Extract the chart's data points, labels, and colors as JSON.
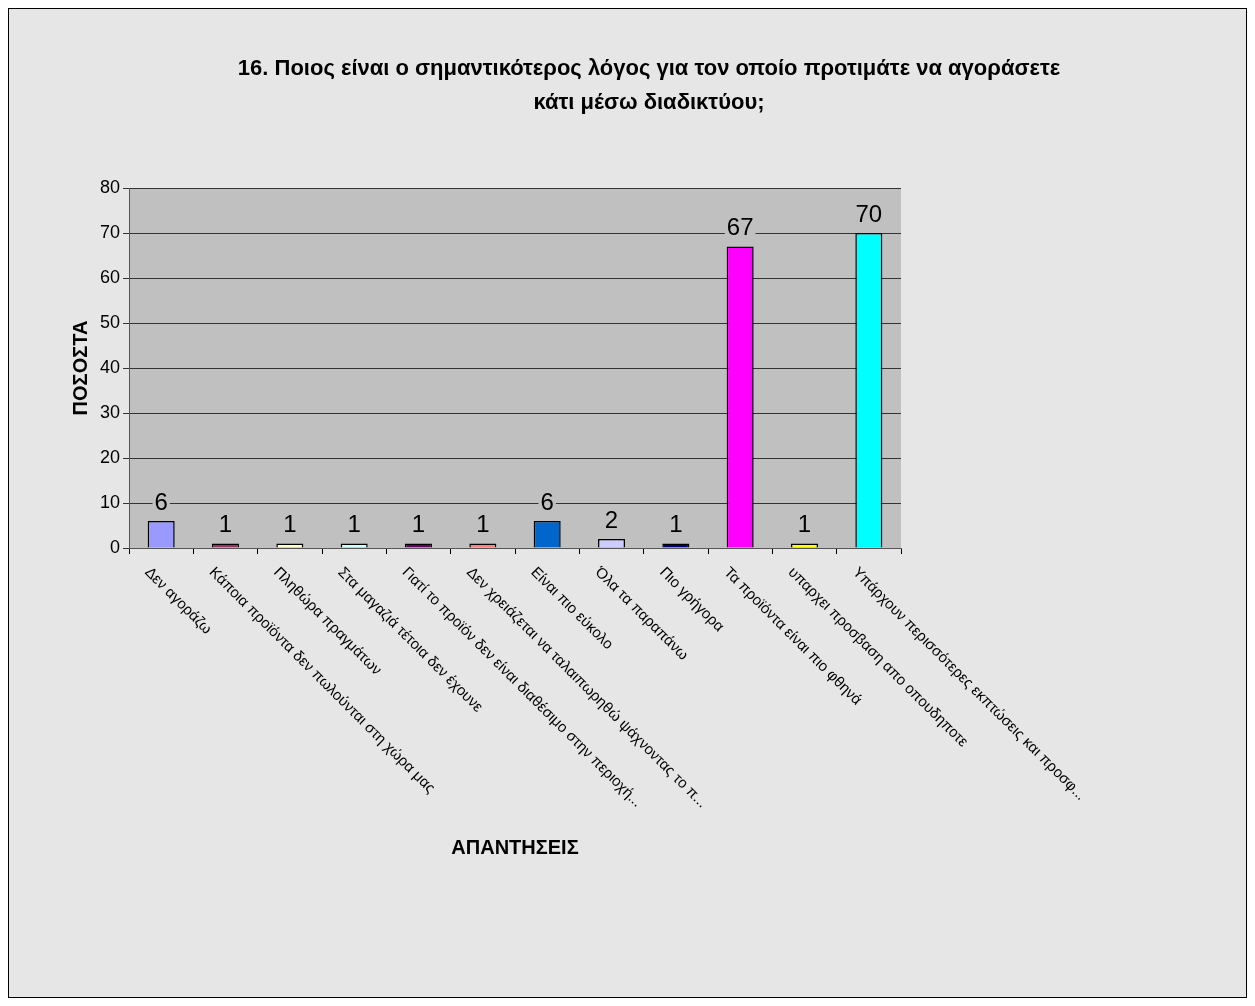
{
  "chart_data": {
    "type": "bar",
    "title": "16. Ποιος είναι ο σημαντικότερος λόγος για τον οποίο προτιμάτε να αγοράσετε κάτι μέσω διαδικτύου;",
    "xlabel": "ΑΠΑΝΤΗΣΕΙΣ",
    "ylabel": "ΠΟΣΟΣΤΑ",
    "categories": [
      "Δεν αγοράζω",
      "Κάποια προϊόντα δεν πωλούνται στη χώρα μας",
      "Πληθώρα πραγμάτων",
      "Στα μαγαζιά τέτοια δεν έχουνε",
      "Γιατί το προϊόν δεν είναι διαθέσιμο στην περιοχή...",
      "Δεν χρειάζεται να ταλαιπωρηθώ ψάχνοντας το π...",
      "Είναι πιο εύκολο",
      "Όλα τα παραπάνω",
      "Πιο γρήγορα",
      "Τα προϊόντα είναι πιο φθηνά",
      "υπαρχει προσβαση απο οπουδηποτε",
      "Υπάρχουν περισσότερες εκπτώσεις και προσφ..."
    ],
    "values": [
      6,
      1,
      1,
      1,
      1,
      1,
      6,
      2,
      1,
      67,
      1,
      70
    ],
    "colors": [
      "#9999ff",
      "#993366",
      "#ffffcc",
      "#ccffff",
      "#660066",
      "#ff8080",
      "#0066cc",
      "#ccccff",
      "#000080",
      "#ff00ff",
      "#ffff00",
      "#00ffff"
    ],
    "ylim": [
      0,
      80
    ],
    "yticks": [
      0,
      10,
      20,
      30,
      40,
      50,
      60,
      70,
      80
    ],
    "grid": "y",
    "data_labels": true
  }
}
